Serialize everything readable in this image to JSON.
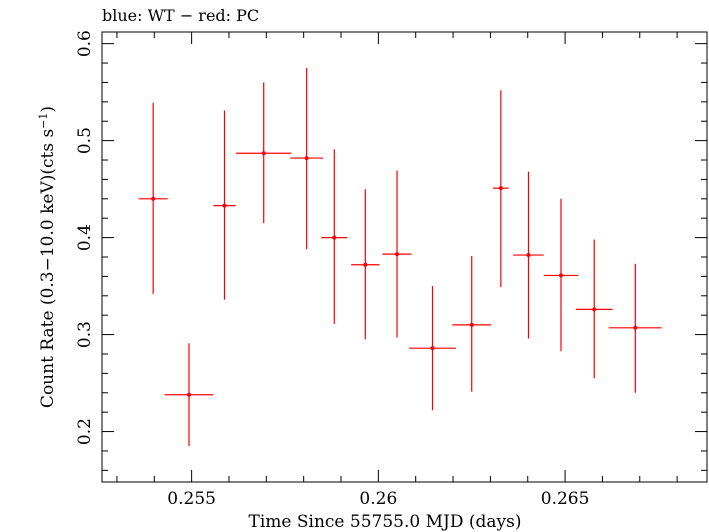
{
  "chart_data": {
    "type": "scatter",
    "title": "blue: WT − red: PC",
    "xlabel": "Time Since 55755.0 MJD (days)",
    "ylabel_main": "Count Rate (0.3−10.0 keV)(cts s",
    "ylabel_sup": "−1",
    "ylabel_end": ")",
    "xlim": [
      0.2526,
      0.2688
    ],
    "ylim": [
      0.148,
      0.612
    ],
    "xticks": [
      0.255,
      0.26,
      0.265
    ],
    "xtick_labels": [
      "0.255",
      "0.26",
      "0.265"
    ],
    "yticks": [
      0.2,
      0.3,
      0.4,
      0.5,
      0.6
    ],
    "ytick_labels": [
      "0.2",
      "0.3",
      "0.4",
      "0.5",
      "0.6"
    ],
    "series": [
      {
        "color": "#ff0000",
        "points": [
          {
            "x": 0.25397,
            "xerr": 0.00039,
            "y": 0.44,
            "ylo": 0.342,
            "yhi": 0.539
          },
          {
            "x": 0.25493,
            "xerr": 0.00065,
            "y": 0.238,
            "ylo": 0.185,
            "yhi": 0.291
          },
          {
            "x": 0.25588,
            "xerr": 0.0003,
            "y": 0.433,
            "ylo": 0.336,
            "yhi": 0.531
          },
          {
            "x": 0.25693,
            "xerr": 0.00074,
            "y": 0.487,
            "ylo": 0.415,
            "yhi": 0.56
          },
          {
            "x": 0.25808,
            "xerr": 0.00044,
            "y": 0.482,
            "ylo": 0.388,
            "yhi": 0.575
          },
          {
            "x": 0.25882,
            "xerr": 0.00035,
            "y": 0.4,
            "ylo": 0.311,
            "yhi": 0.491
          },
          {
            "x": 0.25965,
            "xerr": 0.00038,
            "y": 0.372,
            "ylo": 0.295,
            "yhi": 0.45
          },
          {
            "x": 0.2605,
            "xerr": 0.00039,
            "y": 0.383,
            "ylo": 0.297,
            "yhi": 0.469
          },
          {
            "x": 0.26145,
            "xerr": 0.00063,
            "y": 0.286,
            "ylo": 0.222,
            "yhi": 0.35
          },
          {
            "x": 0.2625,
            "xerr": 0.00052,
            "y": 0.31,
            "ylo": 0.241,
            "yhi": 0.381
          },
          {
            "x": 0.26328,
            "xerr": 0.00021,
            "y": 0.451,
            "ylo": 0.349,
            "yhi": 0.552
          },
          {
            "x": 0.26402,
            "xerr": 0.00041,
            "y": 0.382,
            "ylo": 0.296,
            "yhi": 0.468
          },
          {
            "x": 0.26489,
            "xerr": 0.00046,
            "y": 0.361,
            "ylo": 0.283,
            "yhi": 0.44
          },
          {
            "x": 0.26578,
            "xerr": 0.00049,
            "y": 0.326,
            "ylo": 0.255,
            "yhi": 0.398
          },
          {
            "x": 0.26688,
            "xerr": 0.00071,
            "y": 0.307,
            "ylo": 0.24,
            "yhi": 0.373
          }
        ]
      }
    ]
  }
}
